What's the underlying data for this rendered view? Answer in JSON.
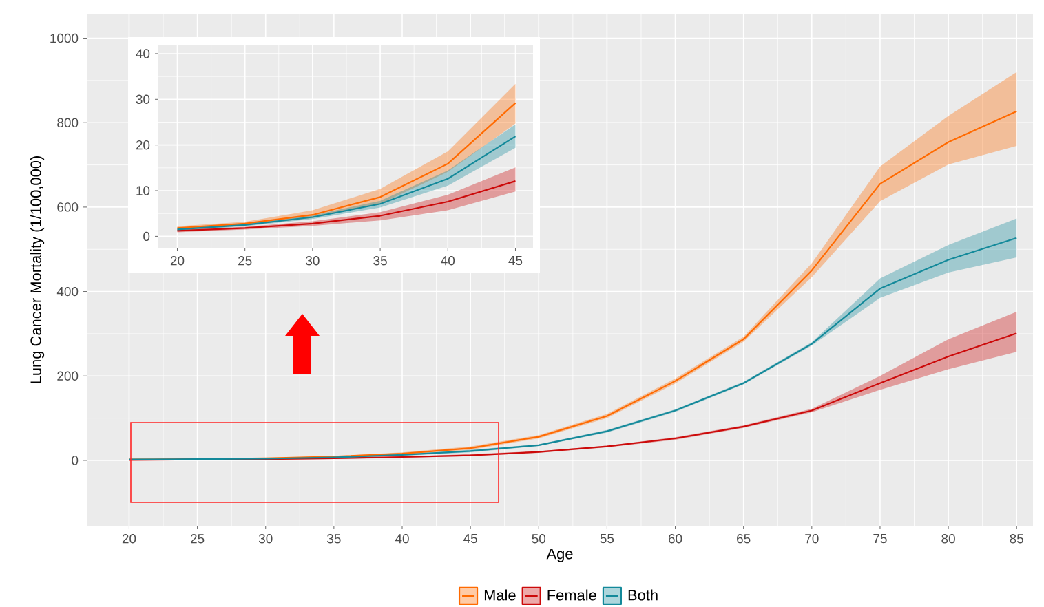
{
  "chart_data": [
    {
      "type": "line",
      "xlabel": "Age",
      "ylabel": "Lung Cancer Mortality (1/100,000)",
      "x": [
        20,
        25,
        30,
        35,
        40,
        45,
        50,
        55,
        60,
        65,
        70,
        75,
        80,
        85
      ],
      "series": [
        {
          "name": "Male",
          "color": "#ff6a00",
          "values": [
            2,
            3,
            5,
            9,
            16,
            29,
            56,
            105,
            188,
            287,
            450,
            655,
            754,
            827
          ],
          "lower": [
            1,
            2,
            4,
            7,
            14,
            25,
            52,
            100,
            182,
            281,
            434,
            614,
            701,
            745
          ],
          "upper": [
            2,
            3,
            6,
            10,
            19,
            33,
            60,
            110,
            194,
            293,
            467,
            696,
            816,
            920
          ]
        },
        {
          "name": "Female",
          "color": "#cc0a0a",
          "values": [
            1,
            2,
            3,
            5,
            8,
            12,
            20,
            33,
            52,
            80,
            118,
            183,
            246,
            301
          ],
          "lower": [
            1,
            1,
            2,
            3,
            6,
            10,
            18,
            31,
            49,
            77,
            114,
            167,
            216,
            257
          ],
          "upper": [
            2,
            2,
            3,
            5,
            9,
            15,
            22,
            35,
            55,
            83,
            122,
            200,
            287,
            352
          ]
        },
        {
          "name": "Both",
          "color": "#13899a",
          "values": [
            2,
            3,
            4,
            7,
            13,
            22,
            36,
            69,
            118,
            183,
            276,
            407,
            475,
            527
          ],
          "lower": [
            1,
            2,
            4,
            6,
            11,
            19,
            34,
            66,
            115,
            180,
            272,
            385,
            445,
            481
          ],
          "upper": [
            2,
            3,
            5,
            8,
            14,
            25,
            38,
            72,
            121,
            186,
            280,
            431,
            510,
            573
          ]
        }
      ],
      "xlim": [
        16.9,
        86.2
      ],
      "ylim": [
        -155,
        1058
      ],
      "xticks": [
        20,
        25,
        30,
        35,
        40,
        45,
        50,
        55,
        60,
        65,
        70,
        75,
        80,
        85
      ],
      "yticks": [
        0,
        200,
        400,
        600,
        800,
        1000
      ],
      "grid": true,
      "legend": "bottom"
    },
    {
      "type": "line",
      "x": [
        20,
        25,
        30,
        35,
        40,
        45
      ],
      "series": [
        {
          "color": "#ff6a00",
          "values": [
            1.8,
            2.8,
            4.7,
            8.6,
            15.9,
            29.2
          ],
          "lower": [
            1.4,
            2.4,
            4.0,
            7.1,
            14.1,
            24.7
          ],
          "upper": [
            2.2,
            3.2,
            5.7,
            10.4,
            18.6,
            33.4
          ]
        },
        {
          "color": "#cc0a0a",
          "values": [
            1.2,
            1.8,
            2.8,
            4.5,
            7.6,
            12.1
          ],
          "lower": [
            0.9,
            1.5,
            2.3,
            3.5,
            5.7,
            9.8
          ],
          "upper": [
            1.5,
            2.1,
            3.3,
            5.3,
            9.1,
            15.1
          ]
        },
        {
          "color": "#13899a",
          "values": [
            1.5,
            2.5,
            4.2,
            7.1,
            12.6,
            21.9
          ],
          "lower": [
            1.2,
            2.2,
            3.8,
            6.3,
            11.1,
            19.4
          ],
          "upper": [
            1.8,
            2.8,
            4.6,
            7.8,
            14.4,
            24.5
          ]
        }
      ],
      "xlim": [
        18.6,
        46.3
      ],
      "ylim": [
        -2.5,
        41.8
      ],
      "xticks": [
        20,
        25,
        30,
        35,
        40,
        45
      ],
      "yticks": [
        0,
        10,
        20,
        30,
        40
      ],
      "grid": true
    }
  ]
}
